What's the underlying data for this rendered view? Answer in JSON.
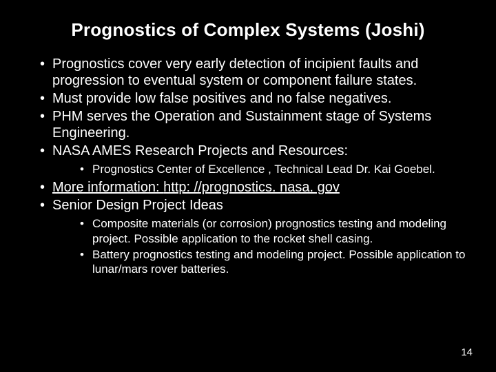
{
  "title": "Prognostics of Complex Systems (Joshi)",
  "bullets": {
    "b0": "Prognostics cover very early detection of incipient faults and progression to eventual system or component failure states.",
    "b1": "Must provide low false positives and no false negatives.",
    "b2": "PHM serves the Operation and Sustainment stage of Systems Engineering.",
    "b3": "NASA AMES Research Projects and Resources:",
    "b3_sub0": "Prognostics Center of Excellence , Technical Lead Dr. Kai Goebel.",
    "b4_prefix": "More information:   ",
    "b4_link": "http: //prognostics. nasa. gov",
    "b5": "Senior Design Project Ideas",
    "b5_sub0": "Composite materials (or corrosion) prognostics testing and modeling project.  Possible application to the rocket shell casing.",
    "b5_sub1": "Battery prognostics testing and modeling project. Possible application to lunar/mars rover batteries."
  },
  "page_number": "14",
  "colors": {
    "background": "#000000",
    "text": "#ffffff"
  },
  "typography": {
    "title_fontsize": 26,
    "level1_fontsize": 20,
    "level2_fontsize": 17,
    "pagenum_fontsize": 15,
    "font_family": "Arial"
  }
}
